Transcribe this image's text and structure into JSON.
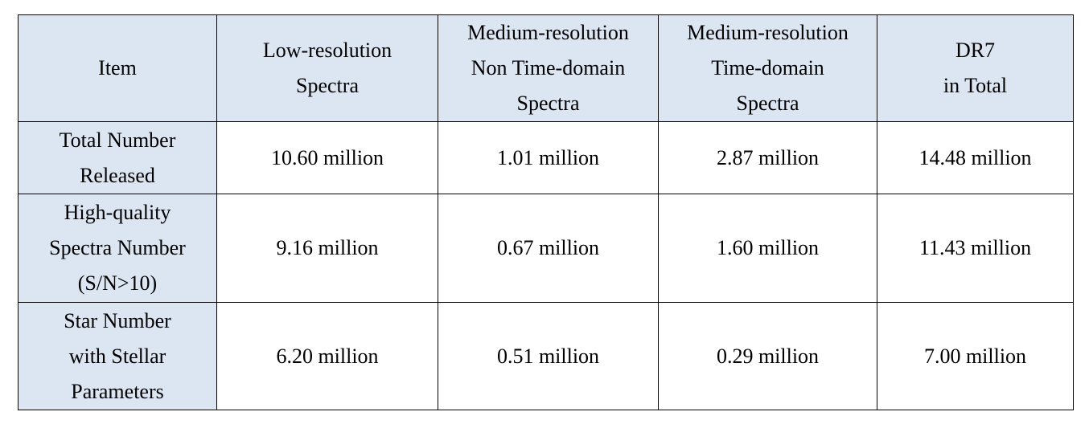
{
  "table": {
    "header": [
      [
        "Item"
      ],
      [
        "Low-resolution",
        "Spectra"
      ],
      [
        "Medium-resolution",
        "Non Time-domain",
        "Spectra"
      ],
      [
        "Medium-resolution",
        "Time-domain",
        "Spectra"
      ],
      [
        "DR7",
        "in Total"
      ]
    ],
    "rows": [
      [
        [
          "Total Number",
          "Released"
        ],
        [
          "10.60 million"
        ],
        [
          "1.01 million"
        ],
        [
          "2.87 million"
        ],
        [
          "14.48 million"
        ]
      ],
      [
        [
          "High-quality",
          "Spectra Number",
          "(S/N>10)"
        ],
        [
          "9.16 million"
        ],
        [
          "0.67 million"
        ],
        [
          "1.60 million"
        ],
        [
          "11.43 million"
        ]
      ],
      [
        [
          "Star Number",
          "with Stellar",
          "Parameters"
        ],
        [
          "6.20 million"
        ],
        [
          "0.51 million"
        ],
        [
          "0.29 million"
        ],
        [
          "7.00 million"
        ]
      ]
    ]
  }
}
